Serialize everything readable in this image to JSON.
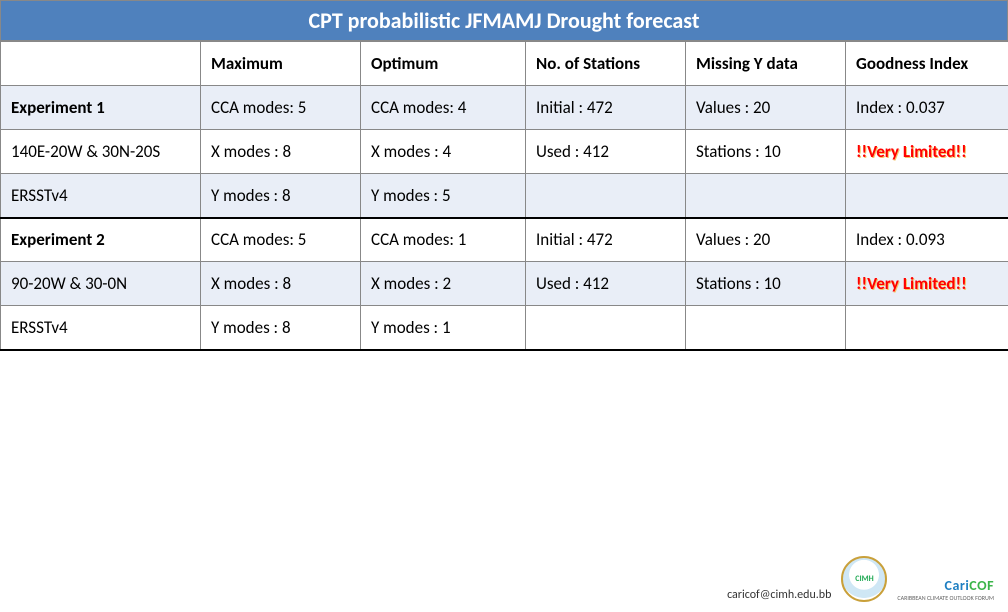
{
  "title": "CPT probabilistic JFMAMJ Drought forecast",
  "headers": [
    "",
    "Maximum",
    "Optimum",
    "No. of Stations",
    "Missing Y data",
    "Goodness Index"
  ],
  "rows": [
    {
      "alt": true,
      "bold": true,
      "sepTop": false,
      "sepBottom": false,
      "limited": false,
      "cells": [
        "Experiment 1",
        "CCA modes: 5",
        "CCA modes: 4",
        "Initial : 472",
        "Values : 20",
        "Index : 0.037"
      ]
    },
    {
      "alt": false,
      "bold": false,
      "sepTop": false,
      "sepBottom": false,
      "limited": true,
      "cells": [
        "140E-20W & 30N-20S",
        "X modes : 8",
        "X modes : 4",
        "Used : 412",
        "Stations : 10",
        "!!Very Limited!!"
      ]
    },
    {
      "alt": true,
      "bold": false,
      "sepTop": false,
      "sepBottom": false,
      "limited": false,
      "cells": [
        "ERSSTv4",
        "Y modes : 8",
        "Y modes : 5",
        "",
        "",
        ""
      ]
    },
    {
      "alt": false,
      "bold": true,
      "sepTop": true,
      "sepBottom": false,
      "limited": false,
      "cells": [
        "Experiment 2",
        "CCA modes: 5",
        "CCA modes: 1",
        "Initial : 472",
        "Values : 20",
        "Index : 0.093"
      ]
    },
    {
      "alt": true,
      "bold": false,
      "sepTop": false,
      "sepBottom": false,
      "limited": true,
      "cells": [
        "90-20W & 30-0N",
        "X modes : 8",
        "X modes : 2",
        "Used : 412",
        "Stations : 10",
        "!!Very Limited!!"
      ]
    },
    {
      "alt": false,
      "bold": false,
      "sepTop": false,
      "sepBottom": true,
      "limited": false,
      "cells": [
        "ERSSTv4",
        "Y modes : 8",
        "Y modes : 1",
        "",
        "",
        ""
      ]
    }
  ],
  "footer": {
    "email": "caricof@cimh.edu.bb",
    "logo_label": "CIMH",
    "brand_a": "Cari",
    "brand_b": "COF",
    "brand_sub": "CARIBBEAN CLIMATE OUTLOOK FORUM"
  },
  "colors": {
    "title_bg": "#4f81bd",
    "alt_row_bg": "#e9eef7",
    "limited_color": "#ff0000",
    "border": "#888888"
  }
}
